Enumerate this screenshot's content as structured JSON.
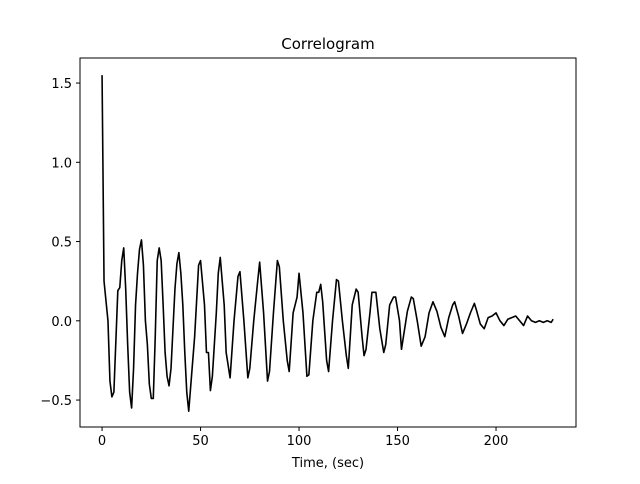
{
  "chart_data": {
    "type": "line",
    "title": "Correlogram",
    "x_label": "Time, (sec)",
    "color": "#000000",
    "x": [
      0,
      1,
      3,
      4,
      5,
      6,
      8,
      9,
      10,
      11,
      12,
      13,
      14,
      15,
      16,
      17,
      18,
      19,
      20,
      21,
      22,
      23,
      24,
      25,
      26,
      27,
      28,
      29,
      30,
      31,
      32,
      33,
      34,
      35,
      36,
      37,
      38,
      39,
      40,
      41,
      42,
      43,
      44,
      47,
      49,
      50,
      52,
      53,
      54,
      55,
      56,
      58,
      59,
      60,
      62,
      63,
      65,
      67,
      69,
      70,
      72,
      74,
      75,
      77,
      79,
      80,
      82,
      84,
      85,
      87,
      89,
      90,
      92,
      94,
      95,
      97,
      99,
      100,
      102,
      104,
      105,
      107,
      109,
      110,
      111,
      112,
      114,
      115,
      117,
      119,
      120,
      122,
      124,
      125,
      127,
      129,
      130,
      132,
      133,
      134,
      136,
      137,
      139,
      141,
      143,
      144,
      146,
      148,
      149,
      151,
      152,
      153,
      155,
      157,
      158,
      160,
      162,
      164,
      166,
      168,
      170,
      172,
      174,
      176,
      178,
      179,
      181,
      183,
      185,
      187,
      189,
      190,
      192,
      194,
      196,
      198,
      200,
      202,
      204,
      206,
      208,
      210,
      212,
      214,
      216,
      218,
      220,
      222,
      224,
      226,
      228,
      229
    ],
    "values": [
      1.55,
      0.25,
      0.0,
      -0.38,
      -0.48,
      -0.45,
      0.19,
      0.21,
      0.38,
      0.46,
      0.2,
      -0.15,
      -0.45,
      -0.55,
      -0.3,
      0.1,
      0.3,
      0.45,
      0.51,
      0.35,
      0.0,
      -0.15,
      -0.4,
      -0.49,
      -0.49,
      -0.1,
      0.38,
      0.46,
      0.38,
      0.1,
      -0.2,
      -0.35,
      -0.41,
      -0.3,
      -0.05,
      0.2,
      0.36,
      0.43,
      0.3,
      0.1,
      -0.2,
      -0.45,
      -0.57,
      -0.1,
      0.35,
      0.38,
      0.1,
      -0.2,
      -0.2,
      -0.44,
      -0.35,
      0.05,
      0.3,
      0.4,
      0.1,
      -0.2,
      -0.36,
      0.0,
      0.28,
      0.31,
      0.0,
      -0.36,
      -0.3,
      0.0,
      0.25,
      0.37,
      0.05,
      -0.38,
      -0.32,
      0.05,
      0.38,
      0.34,
      0.0,
      -0.25,
      -0.32,
      0.05,
      0.15,
      0.3,
      0.05,
      -0.35,
      -0.34,
      0.0,
      0.18,
      0.18,
      0.23,
      0.12,
      -0.25,
      -0.32,
      0.0,
      0.26,
      0.25,
      0.0,
      -0.22,
      -0.3,
      0.1,
      0.2,
      0.18,
      -0.1,
      -0.22,
      -0.18,
      0.05,
      0.18,
      0.18,
      -0.05,
      -0.2,
      -0.15,
      0.1,
      0.15,
      0.15,
      0.0,
      -0.18,
      -0.1,
      0.06,
      0.15,
      0.14,
      0.0,
      -0.16,
      -0.1,
      0.05,
      0.12,
      0.06,
      -0.04,
      -0.1,
      0.02,
      0.1,
      0.12,
      0.03,
      -0.08,
      -0.02,
      0.05,
      0.11,
      0.07,
      -0.02,
      -0.05,
      0.02,
      0.03,
      0.05,
      0.0,
      -0.03,
      0.01,
      0.02,
      0.03,
      0.0,
      -0.03,
      0.03,
      0.0,
      -0.01,
      0.0,
      -0.01,
      0.0,
      -0.01,
      0.01
    ],
    "xlim": [
      -11.2,
      240.6
    ],
    "xticks": [
      0,
      50,
      100,
      150,
      200
    ],
    "ylim": [
      -0.67,
      1.658
    ],
    "yticks": [
      {
        "value": -0.5,
        "label": "−0.5"
      },
      {
        "value": 0,
        "label": "0.0"
      },
      {
        "value": 0.5,
        "label": "0.5"
      },
      {
        "value": 1,
        "label": "1.0"
      },
      {
        "value": 1.5,
        "label": "1.5"
      }
    ]
  }
}
